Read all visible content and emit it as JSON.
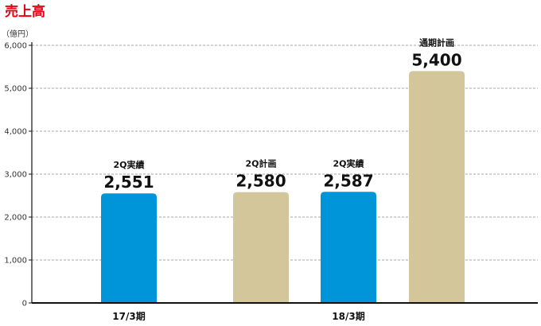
{
  "chart_data": {
    "type": "bar",
    "title": "売上高",
    "unit_label": "（億円）",
    "ylim": [
      0,
      6000
    ],
    "yticks": [
      0,
      1000,
      2000,
      3000,
      4000,
      5000,
      6000
    ],
    "ytick_labels": [
      "0",
      "1,000",
      "2,000",
      "3,000",
      "4,000",
      "5,000",
      "6,000"
    ],
    "grid": true,
    "legend": "none",
    "bars": [
      {
        "group": "17/3期",
        "label": "2Q実績",
        "value": 2551,
        "value_label": "2,551",
        "color": "#0095d9"
      },
      {
        "group": "18/3期",
        "label": "2Q計画",
        "value": 2580,
        "value_label": "2,580",
        "color": "#d4c69b"
      },
      {
        "group": "18/3期",
        "label": "2Q実績",
        "value": 2587,
        "value_label": "2,587",
        "color": "#0095d9"
      },
      {
        "group": "18/3期",
        "label": "通期計画",
        "value": 5400,
        "value_label": "5,400",
        "color": "#d4c69b"
      }
    ],
    "categories": [
      "17/3期",
      "18/3期"
    ]
  },
  "colors": {
    "title": "#e60012",
    "actual": "#0095d9",
    "plan": "#d4c69b",
    "axis": "#111111",
    "grid": "#888888"
  }
}
